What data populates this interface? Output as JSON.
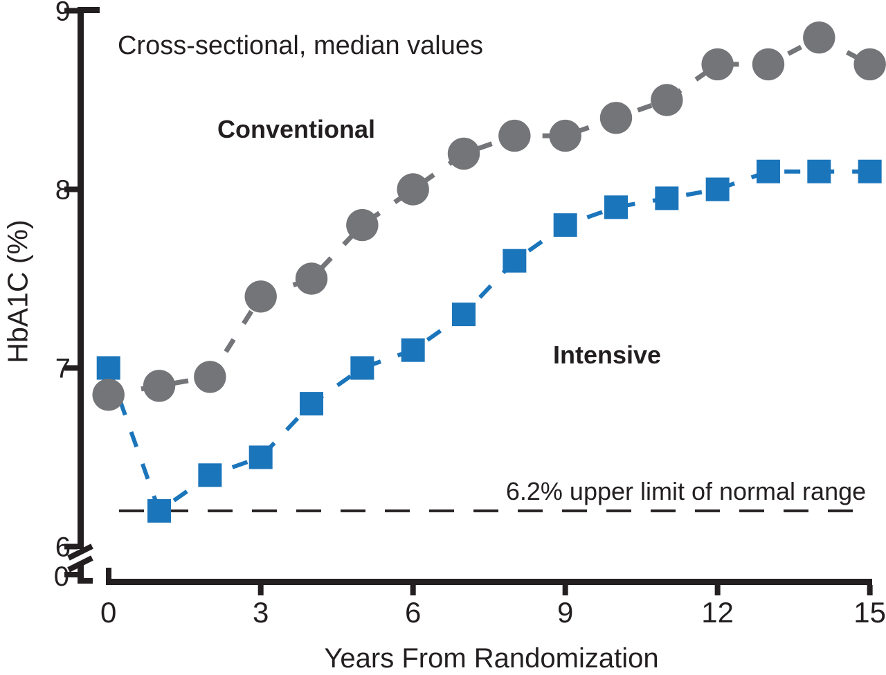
{
  "chart_data": {
    "type": "line",
    "subtitle": "Cross-sectional, median values",
    "xlabel": "Years From Randomization",
    "ylabel": "HbA1C (%)",
    "x": [
      0,
      1,
      2,
      3,
      4,
      5,
      6,
      7,
      8,
      9,
      10,
      11,
      12,
      13,
      14,
      15
    ],
    "x_ticks": [
      0,
      3,
      6,
      9,
      12,
      15
    ],
    "y_ticks": [
      9,
      8,
      7,
      6
    ],
    "y_break_tick": 0,
    "ylim": [
      6,
      9
    ],
    "axis_break": true,
    "grid": false,
    "legend": "inline-text-labels",
    "series": [
      {
        "name": "Conventional",
        "marker": "circle",
        "line_style": "dashed",
        "color": "#747579",
        "values": [
          6.85,
          6.9,
          6.95,
          7.4,
          7.5,
          7.8,
          8.0,
          8.2,
          8.3,
          8.3,
          8.4,
          8.5,
          8.7,
          8.7,
          8.85,
          8.7
        ]
      },
      {
        "name": "Intensive",
        "marker": "square",
        "line_style": "dashed",
        "color": "#1b75bb",
        "values": [
          7.0,
          6.2,
          6.4,
          6.5,
          6.8,
          7.0,
          7.1,
          7.3,
          7.6,
          7.8,
          7.9,
          7.95,
          8.0,
          8.1,
          8.1,
          8.1
        ]
      }
    ],
    "reference_line": {
      "value": 6.2,
      "label": "6.2% upper limit of normal range",
      "style": "dashed",
      "color": "#231f20"
    }
  },
  "colors": {
    "axis": "#231f20",
    "text": "#231f20",
    "background": "#ffffff",
    "conventional": "#747579",
    "intensive": "#1b75bb"
  }
}
